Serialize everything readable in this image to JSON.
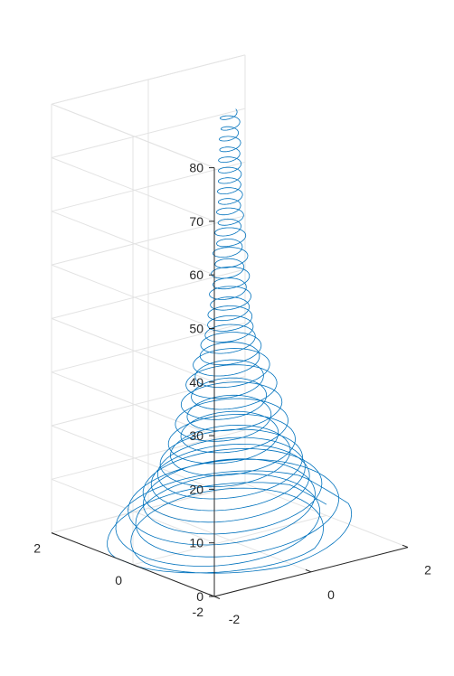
{
  "chart_data": {
    "type": "line",
    "subtype": "3d-parametric-mesh",
    "title": "",
    "xlabel": "",
    "ylabel": "",
    "zlabel": "",
    "xlim": [
      -2,
      2
    ],
    "ylim": [
      -2,
      2
    ],
    "zlim": [
      0,
      80
    ],
    "x_ticks": [
      "-2",
      "0",
      "2"
    ],
    "y_ticks": [
      "-2",
      "0",
      "2"
    ],
    "z_ticks": [
      "0",
      "10",
      "20",
      "30",
      "40",
      "50",
      "60",
      "70",
      "80"
    ],
    "grid": true,
    "line_color": "#0072BD",
    "series": [
      {
        "description_of_shape": "spiralling mesh that is widest near z=0 (radius about 2) and narrows as z increases, reaching a thin twisted column near z=80",
        "radius_profile": [
          {
            "z": 0,
            "radius": 2.0
          },
          {
            "z": 5,
            "radius": 1.8
          },
          {
            "z": 10,
            "radius": 1.5
          },
          {
            "z": 15,
            "radius": 1.2
          },
          {
            "z": 20,
            "radius": 0.95
          },
          {
            "z": 25,
            "radius": 0.8
          },
          {
            "z": 30,
            "radius": 0.7
          },
          {
            "z": 35,
            "radius": 0.55
          },
          {
            "z": 40,
            "radius": 0.4
          },
          {
            "z": 50,
            "radius": 0.3
          },
          {
            "z": 60,
            "radius": 0.22
          },
          {
            "z": 70,
            "radius": 0.2
          },
          {
            "z": 80,
            "radius": 0.15
          }
        ]
      }
    ]
  }
}
